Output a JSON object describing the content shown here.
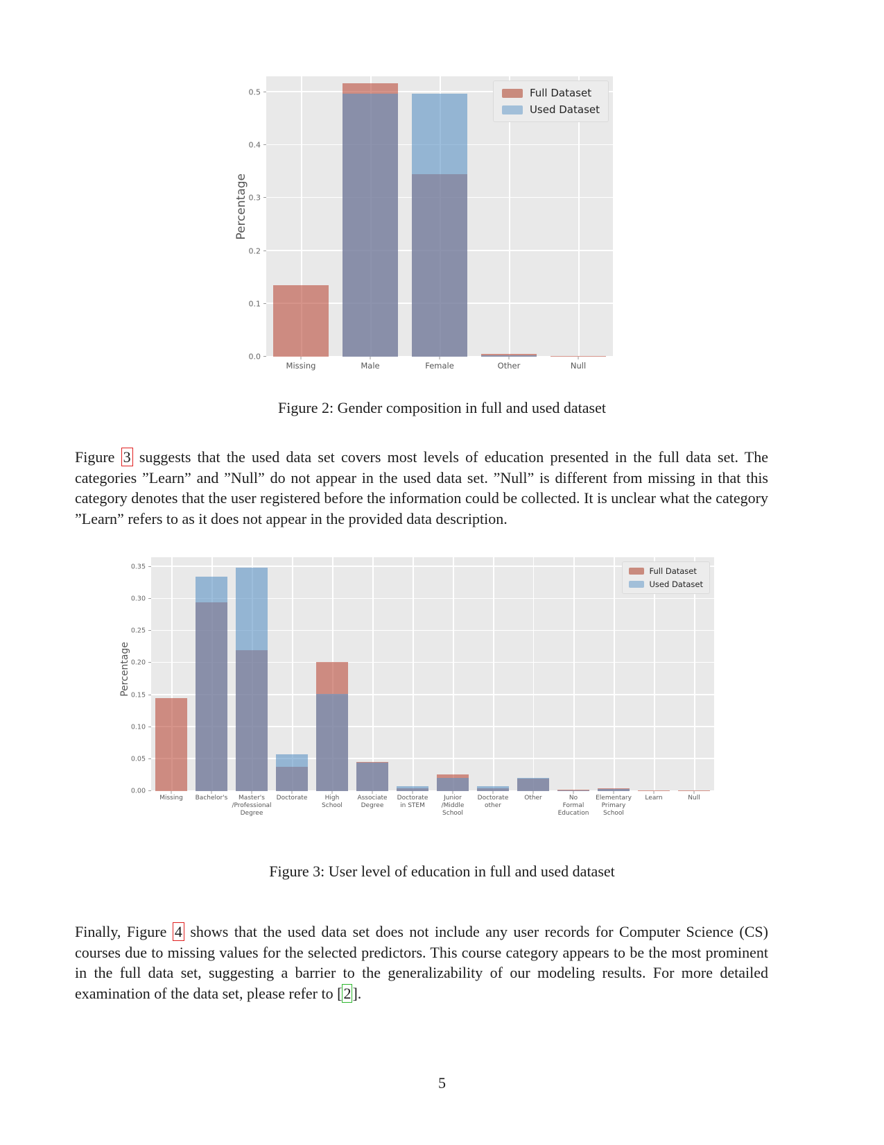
{
  "page": {
    "number": "5"
  },
  "figures": {
    "figure2": {
      "caption": "Figure 2: Gender composition in full and used dataset",
      "ylabel": "Percentage",
      "legend": {
        "full": "Full Dataset",
        "used": "Used Dataset"
      }
    },
    "figure3": {
      "caption": "Figure 3: User level of education in full and used dataset",
      "ylabel": "Percentage",
      "legend": {
        "full": "Full Dataset",
        "used": "Used Dataset"
      }
    }
  },
  "paragraphs": {
    "para1": {
      "pre": "Figure ",
      "ref": "3",
      "post": " suggests that the used data set covers most levels of education presented in the full data set.  The categories ”Learn” and ”Null” do not appear in the used data set.  ”Null” is different from missing in that this category denotes that the user registered before the information could be collected.  It is unclear what the category ”Learn” refers to as it does not appear in the provided data description."
    },
    "para2": {
      "pre": "Finally, Figure ",
      "ref": "4",
      "mid": " shows that the used data set does not include any user records for Computer Science (CS) courses due to missing values for the selected predictors.  This course category appears to be the most prominent in the full data set, suggesting a barrier to the generalizability of our modeling results.  For more detailed examination of the data set, please refer to [",
      "cite": "2",
      "post": "]."
    }
  },
  "chart_data": [
    {
      "id": "figure2-gender-composition",
      "type": "bar",
      "title": "",
      "xlabel": "",
      "ylabel": "Percentage",
      "categories": [
        "Missing",
        "Male",
        "Female",
        "Other",
        "Null"
      ],
      "series": [
        {
          "name": "Full Dataset",
          "values": [
            0.135,
            0.517,
            0.345,
            0.005,
            0.001
          ]
        },
        {
          "name": "Used Dataset",
          "values": [
            0.0,
            0.497,
            0.497,
            0.003,
            0.0
          ]
        }
      ],
      "ylim": [
        0,
        0.53
      ],
      "yticks": [
        0.0,
        0.1,
        0.2,
        0.3,
        0.4,
        0.5
      ],
      "ytick_labels": [
        "0.0",
        "0.1",
        "0.2",
        "0.3",
        "0.4",
        "0.5"
      ],
      "bar_width_frac": 0.8,
      "grid": true,
      "legend_position": "upper right",
      "colors": {
        "full": "#c98b7e",
        "used": "#a2bfd9",
        "overlap": "#8d90a4",
        "plot_bg": "#e9e9e9"
      }
    },
    {
      "id": "figure3-education-level",
      "type": "bar",
      "title": "",
      "xlabel": "",
      "ylabel": "Percentage",
      "categories": [
        "Missing",
        "Bachelor's",
        "Master's\n/Professional\nDegree",
        "Doctorate",
        "High\nSchool",
        "Associate\nDegree",
        "Doctorate\nin STEM",
        "Junior\n/Middle\nSchool",
        "Doctorate\nother",
        "Other",
        "No\nFormal\nEducation",
        "Elementary\nPrimary\nSchool",
        "Learn",
        "Null"
      ],
      "series": [
        {
          "name": "Full Dataset",
          "values": [
            0.145,
            0.295,
            0.22,
            0.038,
            0.201,
            0.046,
            0.004,
            0.026,
            0.004,
            0.019,
            0.002,
            0.004,
            0.001,
            0.001
          ]
        },
        {
          "name": "Used Dataset",
          "values": [
            0.0,
            0.335,
            0.349,
            0.057,
            0.152,
            0.044,
            0.008,
            0.021,
            0.008,
            0.021,
            0.001,
            0.003,
            0.0,
            0.0
          ]
        }
      ],
      "ylim": [
        0,
        0.365
      ],
      "yticks": [
        0.0,
        0.05,
        0.1,
        0.15,
        0.2,
        0.25,
        0.3,
        0.35
      ],
      "ytick_labels": [
        "0.00",
        "0.05",
        "0.10",
        "0.15",
        "0.20",
        "0.25",
        "0.30",
        "0.35"
      ],
      "bar_width_frac": 0.8,
      "grid": true,
      "legend_position": "upper right",
      "colors": {
        "full": "#c98b7e",
        "used": "#a2bfd9",
        "overlap": "#8d90a4",
        "plot_bg": "#e9e9e9"
      }
    }
  ]
}
